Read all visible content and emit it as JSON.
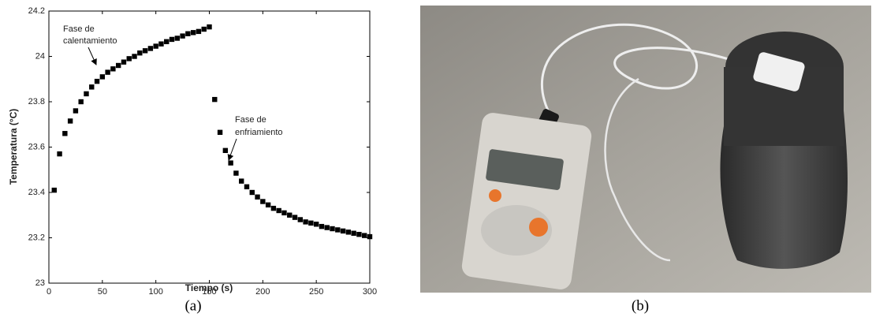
{
  "chart_data": {
    "type": "scatter",
    "x_label": "Tiempo (s)",
    "y_label": "Temperatura (°C)",
    "x": [
      5,
      10,
      15,
      20,
      25,
      30,
      35,
      40,
      45,
      50,
      55,
      60,
      65,
      70,
      75,
      80,
      85,
      90,
      95,
      100,
      105,
      110,
      115,
      120,
      125,
      130,
      135,
      140,
      145,
      150,
      155,
      160,
      165,
      170,
      175,
      180,
      185,
      190,
      195,
      200,
      205,
      210,
      215,
      220,
      225,
      230,
      235,
      240,
      245,
      250,
      255,
      260,
      265,
      270,
      275,
      280,
      285,
      290,
      295,
      300
    ],
    "series": [
      {
        "color": "#000000",
        "marker": "square",
        "values": [
          23.41,
          23.57,
          23.66,
          23.715,
          23.76,
          23.8,
          23.835,
          23.865,
          23.89,
          23.91,
          23.93,
          23.945,
          23.96,
          23.975,
          23.99,
          24.0,
          24.015,
          24.025,
          24.035,
          24.045,
          24.055,
          24.065,
          24.075,
          24.08,
          24.09,
          24.1,
          24.105,
          24.11,
          24.12,
          24.13,
          23.81,
          23.665,
          23.585,
          23.53,
          23.485,
          23.45,
          23.425,
          23.4,
          23.38,
          23.36,
          23.345,
          23.33,
          23.32,
          23.31,
          23.3,
          23.29,
          23.28,
          23.27,
          23.265,
          23.26,
          23.25,
          23.245,
          23.24,
          23.235,
          23.23,
          23.225,
          23.22,
          23.215,
          23.21,
          23.205
        ]
      }
    ],
    "xlim": [
      0,
      300
    ],
    "xticks": [
      0,
      50,
      100,
      150,
      200,
      250,
      300
    ],
    "ylim": [
      23,
      24.2
    ],
    "yticks": [
      23,
      23.2,
      23.4,
      23.6,
      23.8,
      24,
      24.2
    ],
    "annotations": [
      {
        "lines": [
          "Fase de",
          "calentamiento"
        ]
      },
      {
        "lines": [
          "Fase de",
          "enfriamiento"
        ]
      }
    ]
  },
  "panel_labels": [
    "(a)",
    "(b)"
  ]
}
